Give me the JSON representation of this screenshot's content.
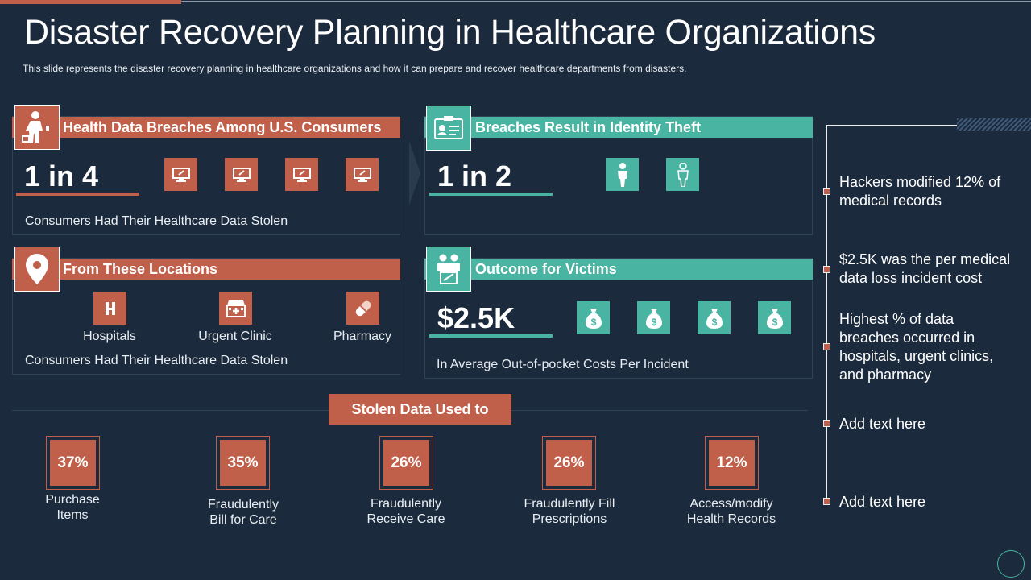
{
  "slide": {
    "title": "Disaster Recovery Planning in Healthcare Organizations",
    "subtitle": "This slide represents the disaster recovery  planning in healthcare organizations  and how it can prepare  and recover  healthcare departments from  disasters."
  },
  "panel_breaches": {
    "header": "Health Data Breaches Among U.S. Consumers",
    "stat": "1 in 4",
    "caption": "Consumers  Had Their  Healthcare  Data Stolen",
    "icons": [
      "monitor-icon",
      "monitor-icon",
      "monitor-icon",
      "monitor-icon"
    ]
  },
  "panel_identity": {
    "header": "Breaches Result in Identity Theft",
    "stat": "1 in 2",
    "icons": [
      "person-icon",
      "person-icon"
    ]
  },
  "panel_locations": {
    "header": "From These Locations",
    "locations": [
      {
        "label": "Hospitals",
        "icon": "hospital-icon"
      },
      {
        "label": "Urgent Clinic",
        "icon": "clinic-icon"
      },
      {
        "label": "Pharmacy",
        "icon": "pill-icon"
      }
    ],
    "caption": "Consumers  Had Their  Healthcare  Data Stolen"
  },
  "panel_outcome": {
    "header": "Outcome for Victims",
    "stat": "$2.5K",
    "caption": "In Average Out-of-pocket  Costs Per Incident",
    "icons": [
      "money-bag-icon",
      "money-bag-icon",
      "money-bag-icon",
      "money-bag-icon"
    ]
  },
  "stolen": {
    "header": "Stolen Data Used to",
    "items": [
      {
        "pct": "37%",
        "label_1": "Purchase",
        "label_2": "Items"
      },
      {
        "pct": "35%",
        "label_1": "Fraudulently",
        "label_2": "Bill for Care"
      },
      {
        "pct": "26%",
        "label_1": "Fraudulently",
        "label_2": "Receive Care"
      },
      {
        "pct": "26%",
        "label_1": "Fraudulently  Fill",
        "label_2": "Prescriptions"
      },
      {
        "pct": "12%",
        "label_1": "Access/modify",
        "label_2": "Health Records"
      }
    ]
  },
  "timeline": [
    {
      "line_1": "Hackers modified 12% of",
      "line_2": "medical records"
    },
    {
      "line_1": "$2.5K was the per medical",
      "line_2": "data loss incident cost"
    },
    {
      "line_1": "Highest % of data",
      "line_2": "breaches occurred in",
      "line_3": "hospitals, urgent clinics,",
      "line_4": "and pharmacy"
    },
    {
      "line_1": "Add text here"
    },
    {
      "line_1": "Add text here"
    }
  ],
  "colors": {
    "background": "#1b2a3c",
    "accent_orange": "#c0604a",
    "accent_teal": "#4ab4a3"
  }
}
